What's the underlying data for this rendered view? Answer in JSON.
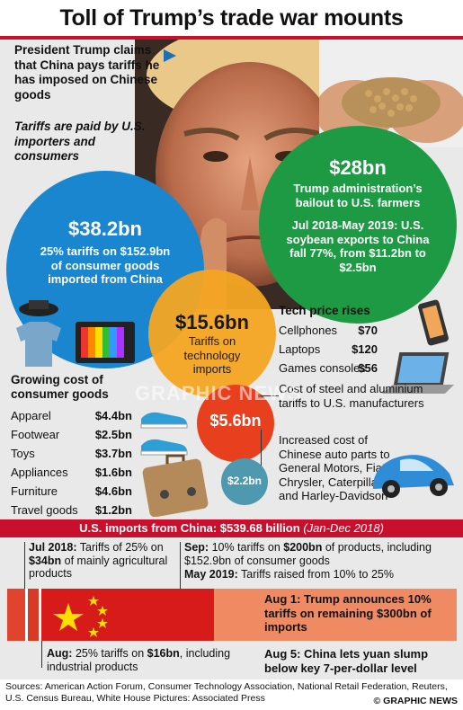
{
  "title": "Toll of Trump’s trade war mounts",
  "claim": {
    "text": "President Trump claims that China pays tariffs he has imposed on Chinese goods",
    "italic": "Tariffs are paid by U.S. importers and consumers"
  },
  "blue_circle": {
    "amount": "$38.2bn",
    "text": "25% tariffs on $152.9bn of consumer goods imported from China"
  },
  "green_circle": {
    "amount": "$28bn",
    "text": "Trump administration’s bailout to U.S. farmers",
    "detail": "Jul 2018-May 2019: U.S. soybean exports to China fall 77%, from $11.2bn to $2.5bn"
  },
  "orange_circle": {
    "amount": "$15.6bn",
    "text": "Tariffs on technology imports"
  },
  "red_circle": {
    "amount": "$5.6bn",
    "text": "Cost of steel and aluminium tariffs to U.S. manufacturers"
  },
  "teal_circle": {
    "amount": "$2.2bn",
    "text": "Increased cost of Chinese auto parts to General Motors, Fiat Chrysler, Caterpillar and Harley-Davidson"
  },
  "tech": {
    "header": "Tech price rises",
    "rows": [
      {
        "label": "Cellphones",
        "value": "$70"
      },
      {
        "label": "Laptops",
        "value": "$120"
      },
      {
        "label": "Games consoles",
        "value": "$56"
      }
    ]
  },
  "consumer": {
    "header": "Growing cost of consumer goods",
    "rows": [
      {
        "label": "Apparel",
        "value": "$4.4bn"
      },
      {
        "label": "Footwear",
        "value": "$2.5bn"
      },
      {
        "label": "Toys",
        "value": "$3.7bn"
      },
      {
        "label": "Appliances",
        "value": "$1.6bn"
      },
      {
        "label": "Furniture",
        "value": "$4.6bn"
      },
      {
        "label": "Travel goods",
        "value": "$1.2bn"
      }
    ]
  },
  "band": {
    "text": "U.S. imports from China: $539.68 billion",
    "period": "(Jan-Dec 2018)"
  },
  "timeline": {
    "jul2018_date": "Jul 2018:",
    "jul2018_text": " Tariffs of 25% on ",
    "jul2018_amount": "$34bn",
    "jul2018_rest": " of mainly agricultural products",
    "sep_date": "Sep:",
    "sep_text": " 10% tariffs on ",
    "sep_amount": "$200bn",
    "sep_rest": " of products, including $152.9bn of consumer goods",
    "may_date": "May 2019:",
    "may_text": " Tariffs raised from 10% to 25%",
    "aug_date": "Aug:",
    "aug_text": " 25% tariffs on ",
    "aug_amount": "$16bn",
    "aug_rest": ", including industrial products",
    "aug1": "Aug 1: Trump announces 10% tariffs on remaining $300bn of imports",
    "aug5": "Aug 5: China lets yuan slump below key 7-per-dollar level"
  },
  "watermark": "GRAPHIC NEWS",
  "sources": {
    "text": "Sources: American Action Forum, Consumer Technology Association, National Retail Federation, Reuters, U.S. Census Bureau, White House Pictures: Associated Press",
    "credit": "© GRAPHIC NEWS"
  },
  "colors": {
    "accent_red": "#c8102e",
    "blue": "#1a86d0",
    "green": "#1e9a45",
    "orange": "#f5a623",
    "salmon": "#f08a63"
  },
  "icons": [
    "flag-china-icon",
    "shirt-icon",
    "tv-icon",
    "shoe-icon",
    "suitcase-icon",
    "cellphone-icon",
    "laptop-icon",
    "car-icon"
  ]
}
